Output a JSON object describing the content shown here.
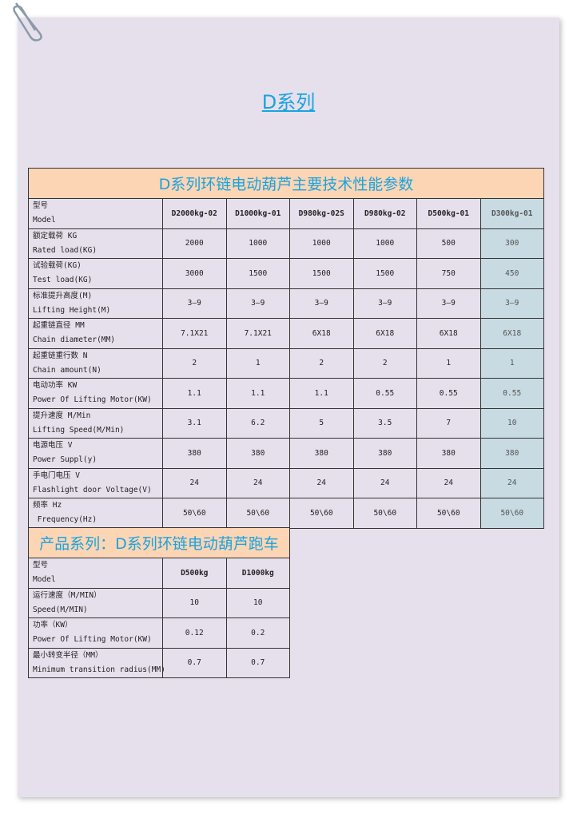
{
  "page_title": "D系列",
  "main_table": {
    "title": "D系列环链电动葫芦主要技术性能参数",
    "header": {
      "label_cn": "型号",
      "label_en": "Model",
      "models": [
        "D2000kg-02",
        "D1000kg-01",
        "D980kg-02S",
        "D980kg-02",
        "D500kg-01",
        "D300kg-01"
      ]
    },
    "rows": [
      {
        "label_cn": "额定载荷 KG",
        "label_en": "Rated load(KG)",
        "values": [
          "2000",
          "1000",
          "1000",
          "1000",
          "500",
          "300"
        ]
      },
      {
        "label_cn": "试验载荷(KG)",
        "label_en": "Test load(KG)",
        "values": [
          "3000",
          "1500",
          "1500",
          "1500",
          "750",
          "450"
        ]
      },
      {
        "label_cn": "标准提升高度(M)",
        "label_en": "Lifting Height(M)",
        "values": [
          "3—9",
          "3—9",
          "3—9",
          "3—9",
          "3—9",
          "3—9"
        ]
      },
      {
        "label_cn": "起重链直径 MM",
        "label_en": "Chain diameter(MM)",
        "values": [
          "7.1X21",
          "7.1X21",
          "6X18",
          "6X18",
          "6X18",
          "6X18"
        ]
      },
      {
        "label_cn": "起重链重行数 N",
        "label_en": "Chain amount(N)",
        "values": [
          "2",
          "1",
          "2",
          "2",
          "1",
          "1"
        ]
      },
      {
        "label_cn": "电动功率 KW",
        "label_en": "Power Of Lifting Motor(KW)",
        "values": [
          "1.1",
          "1.1",
          "1.1",
          "0.55",
          "0.55",
          "0.55"
        ]
      },
      {
        "label_cn": "提升速度 M/Min",
        "label_en": "Lifting Speed(M/Min)",
        "values": [
          "3.1",
          "6.2",
          "5",
          "3.5",
          "7",
          "10"
        ]
      },
      {
        "label_cn": "电源电压 V",
        "label_en": "Power Suppl(y)",
        "values": [
          "380",
          "380",
          "380",
          "380",
          "380",
          "380"
        ]
      },
      {
        "label_cn": "手电门电压 V",
        "label_en": "Flashlight door Voltage(V)",
        "values": [
          "24",
          "24",
          "24",
          "24",
          "24",
          "24"
        ]
      },
      {
        "label_cn": "频率 Hz",
        "label_en": " Frequency(Hz)",
        "values": [
          "50\\60",
          "50\\60",
          "50\\60",
          "50\\60",
          "50\\60",
          "50\\60"
        ]
      }
    ],
    "highlight_color": "#c8dbe2"
  },
  "trolley_table": {
    "title": "产品系列：D系列环链电动葫芦跑车",
    "header": {
      "label_cn": "型号",
      "label_en": "Model",
      "models": [
        "D500kg",
        "D1000kg"
      ]
    },
    "rows": [
      {
        "label_cn": "运行速度（M/MIN）",
        "label_en": "Speed(M/MIN)",
        "values": [
          "10",
          "10"
        ]
      },
      {
        "label_cn": "功率（KW）",
        "label_en": "Power Of Lifting Motor(KW)",
        "values": [
          "0.12",
          "0.2"
        ]
      },
      {
        "label_cn": "最小转变半径（MM）",
        "label_en": "Minimum transition radius(MM)",
        "values": [
          "0.7",
          "0.7"
        ]
      }
    ]
  },
  "colors": {
    "title_blue": "#1aa3e0",
    "title_bg": "#fcd5b4",
    "page_bg": "#e6e0ec"
  }
}
